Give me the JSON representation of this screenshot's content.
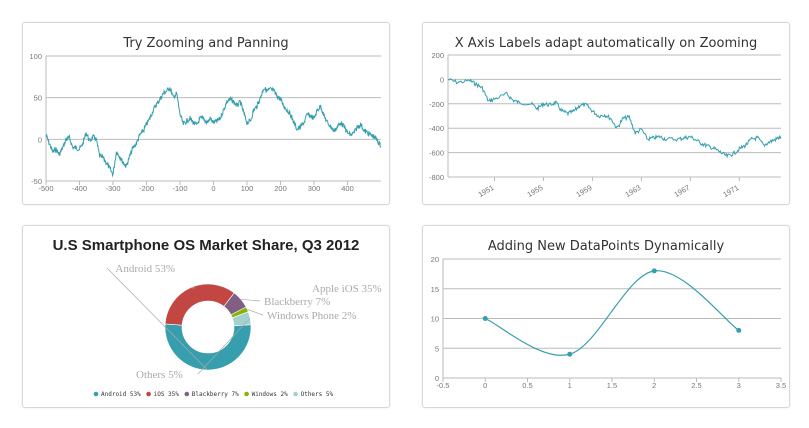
{
  "chart_data": [
    {
      "type": "line",
      "title": "Try Zooming and Panning",
      "xlim": [
        -500,
        500
      ],
      "ylim": [
        -50,
        100
      ],
      "xticks": [
        -500,
        -400,
        -300,
        -200,
        -100,
        0,
        100,
        200,
        300,
        400
      ],
      "yticks": [
        -50,
        0,
        50,
        100
      ],
      "grid": true,
      "color": "#369EAD",
      "x": [
        -500,
        -490,
        -480,
        -470,
        -460,
        -450,
        -440,
        -430,
        -420,
        -410,
        -400,
        -390,
        -380,
        -370,
        -360,
        -350,
        -340,
        -330,
        -320,
        -310,
        -300,
        -290,
        -280,
        -270,
        -260,
        -250,
        -240,
        -230,
        -220,
        -210,
        -200,
        -190,
        -180,
        -170,
        -160,
        -150,
        -140,
        -130,
        -120,
        -110,
        -100,
        -90,
        -80,
        -70,
        -60,
        -50,
        -40,
        -30,
        -20,
        -10,
        0,
        10,
        20,
        30,
        40,
        50,
        60,
        70,
        80,
        90,
        100,
        110,
        120,
        130,
        140,
        150,
        160,
        170,
        180,
        190,
        200,
        210,
        220,
        230,
        240,
        250,
        260,
        270,
        280,
        290,
        300,
        310,
        320,
        330,
        340,
        350,
        360,
        370,
        380,
        390,
        400,
        410,
        420,
        430,
        440,
        450,
        460,
        470,
        480,
        490,
        499
      ],
      "y": [
        5,
        -5,
        -15,
        -12,
        -18,
        -10,
        0,
        2,
        -10,
        -10,
        -12,
        -5,
        8,
        -2,
        3,
        0,
        -20,
        -22,
        -28,
        -35,
        -42,
        -15,
        -20,
        -28,
        -32,
        -20,
        -10,
        -5,
        5,
        10,
        18,
        25,
        35,
        42,
        48,
        55,
        58,
        62,
        50,
        55,
        30,
        18,
        22,
        25,
        20,
        17,
        25,
        25,
        20,
        25,
        20,
        22,
        25,
        35,
        45,
        48,
        45,
        40,
        45,
        32,
        20,
        22,
        35,
        40,
        50,
        62,
        58,
        60,
        58,
        52,
        48,
        40,
        35,
        30,
        20,
        12,
        15,
        20,
        30,
        28,
        25,
        35,
        40,
        28,
        20,
        15,
        10,
        15,
        20,
        15,
        8,
        5,
        8,
        15,
        18,
        10,
        8,
        5,
        3,
        -2,
        -8
      ]
    },
    {
      "type": "line",
      "title": "X Axis Labels adapt automatically on Zooming",
      "xlim": [
        1947.2,
        1974.4
      ],
      "ylim": [
        -800,
        200
      ],
      "xticks": [
        1951,
        1955,
        1959,
        1963,
        1967,
        1971
      ],
      "yticks": [
        -800,
        -600,
        -400,
        -200,
        0,
        200
      ],
      "grid": true,
      "color": "#369EAD",
      "x": [
        1947.2,
        1948,
        1949,
        1949.5,
        1950,
        1950.5,
        1951,
        1952,
        1952.5,
        1953,
        1954,
        1954.5,
        1955,
        1955.5,
        1956,
        1956.5,
        1957,
        1957.5,
        1958,
        1958.5,
        1959,
        1959.5,
        1960,
        1960.5,
        1961,
        1961.5,
        1962,
        1962.5,
        1963,
        1963.5,
        1964,
        1964.5,
        1965,
        1966,
        1966.5,
        1967,
        1967.5,
        1968,
        1968.5,
        1969,
        1969.5,
        1970,
        1970.5,
        1971,
        1971.5,
        1972,
        1972.5,
        1973,
        1973.5,
        1974,
        1974.4
      ],
      "y": [
        0,
        -25,
        -10,
        -40,
        -70,
        -180,
        -160,
        -120,
        -170,
        -190,
        -200,
        -240,
        -200,
        -210,
        -190,
        -260,
        -280,
        -260,
        -210,
        -210,
        -260,
        -300,
        -290,
        -320,
        -400,
        -320,
        -310,
        -440,
        -410,
        -490,
        -480,
        -470,
        -490,
        -490,
        -480,
        -470,
        -500,
        -530,
        -550,
        -570,
        -600,
        -630,
        -610,
        -570,
        -540,
        -490,
        -480,
        -540,
        -510,
        -490,
        -470
      ]
    },
    {
      "type": "pie",
      "title": "U.S Smartphone OS Market Share, Q3 2012",
      "donut": true,
      "slices": [
        {
          "label": "Android 53%",
          "legend": "Android 53%",
          "value": 53,
          "color": "#369EAD"
        },
        {
          "label": "Apple iOS 35%",
          "legend": "iOS 35%",
          "value": 35,
          "color": "#C24642"
        },
        {
          "label": "Blackberry 7%",
          "legend": "Blackberry 7%",
          "value": 7,
          "color": "#7F6084"
        },
        {
          "label": "Windows Phone 2%",
          "legend": "Windows 2%",
          "value": 2,
          "color": "#86B402"
        },
        {
          "label": "Others 5%",
          "legend": "Others 5%",
          "value": 5,
          "color": "#A2D1CF"
        }
      ],
      "legend": "bottom"
    },
    {
      "type": "line",
      "title": "Adding New DataPoints Dynamically",
      "xlim": [
        -0.5,
        3.5
      ],
      "ylim": [
        0,
        20
      ],
      "xticks": [
        -0.5,
        0,
        0.5,
        1,
        1.5,
        2,
        2.5,
        3,
        3.5
      ],
      "yticks": [
        0,
        5,
        10,
        15,
        20
      ],
      "grid": true,
      "color": "#369EAD",
      "smooth": true,
      "markers": true,
      "x": [
        0,
        1,
        2,
        3
      ],
      "y": [
        10,
        4,
        18,
        8
      ]
    }
  ]
}
